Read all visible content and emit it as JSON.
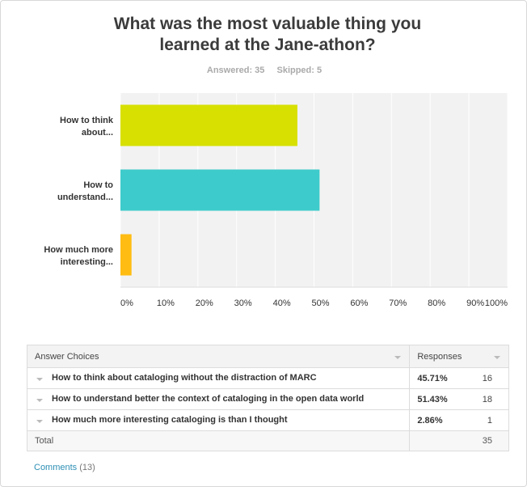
{
  "title": "What was the most valuable thing you learned at the Jane-athon?",
  "answered": "Answered: 35",
  "skipped": "Skipped: 5",
  "chart_data": {
    "type": "bar",
    "orientation": "horizontal",
    "categories": [
      "How to think about...",
      "How to understand...",
      "How much more interesting..."
    ],
    "category_lines": [
      [
        "How to think",
        "about..."
      ],
      [
        "How to",
        "understand..."
      ],
      [
        "How much more",
        "interesting..."
      ]
    ],
    "values": [
      45.71,
      51.43,
      2.86
    ],
    "colors": [
      "#d7e000",
      "#3ecbcb",
      "#ffbc12"
    ],
    "xlim": [
      0,
      100
    ],
    "xticks": [
      "0%",
      "10%",
      "20%",
      "30%",
      "40%",
      "50%",
      "60%",
      "70%",
      "80%",
      "90%",
      "100%"
    ],
    "grid": true
  },
  "table": {
    "header_choices": "Answer Choices",
    "header_responses": "Responses",
    "rows": [
      {
        "choice": "How to think about cataloging without the distraction of MARC",
        "percent": "45.71%",
        "count": "16"
      },
      {
        "choice": "How to understand better the context of cataloging in the open data world",
        "percent": "51.43%",
        "count": "18"
      },
      {
        "choice": "How much more interesting cataloging is than I thought",
        "percent": "2.86%",
        "count": "1"
      }
    ],
    "total_label": "Total",
    "total_value": "35"
  },
  "comments": {
    "label": "Comments",
    "count": "(13)"
  }
}
